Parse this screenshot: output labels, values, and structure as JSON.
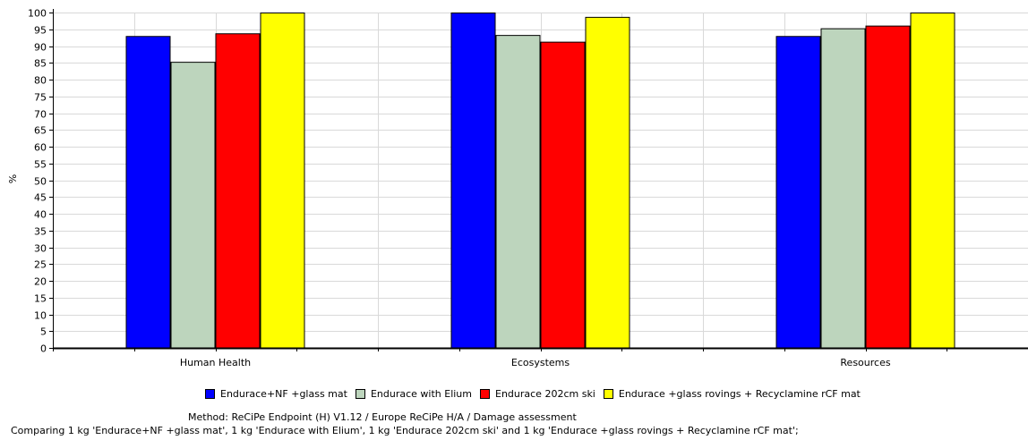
{
  "chart_data": {
    "type": "bar",
    "ylabel": "%",
    "xlabel": "",
    "ylim": [
      0,
      100
    ],
    "yticks": [
      0,
      5,
      10,
      15,
      20,
      25,
      30,
      35,
      40,
      45,
      50,
      55,
      60,
      65,
      70,
      75,
      80,
      85,
      90,
      95,
      100
    ],
    "categories": [
      "Human Health",
      "Ecosystems",
      "Resources"
    ],
    "series": [
      {
        "name": "Endurace+NF +glass mat",
        "color": "#0000ff",
        "values": [
          93,
          100,
          93
        ]
      },
      {
        "name": "Endurace with Elium",
        "color": "#bdd5bd",
        "values": [
          85.3,
          93.3,
          95.3
        ]
      },
      {
        "name": "Endurace 202cm ski",
        "color": "#ff0000",
        "values": [
          93.8,
          91.3,
          96.1
        ]
      },
      {
        "name": "Endurace +glass rovings + Recyclamine rCF mat",
        "color": "#ffff00",
        "values": [
          100,
          98.7,
          100
        ]
      }
    ],
    "grid": true,
    "legend": "bottom"
  },
  "footer": {
    "method": "Method: ReCiPe Endpoint (H) V1.12 / Europe ReCiPe H/A / Damage assessment",
    "comparing": "Comparing 1 kg 'Endurace+NF +glass mat', 1 kg 'Endurace with Elium', 1 kg 'Endurace 202cm ski' and 1 kg 'Endurace +glass rovings + Recyclamine rCF mat';"
  }
}
